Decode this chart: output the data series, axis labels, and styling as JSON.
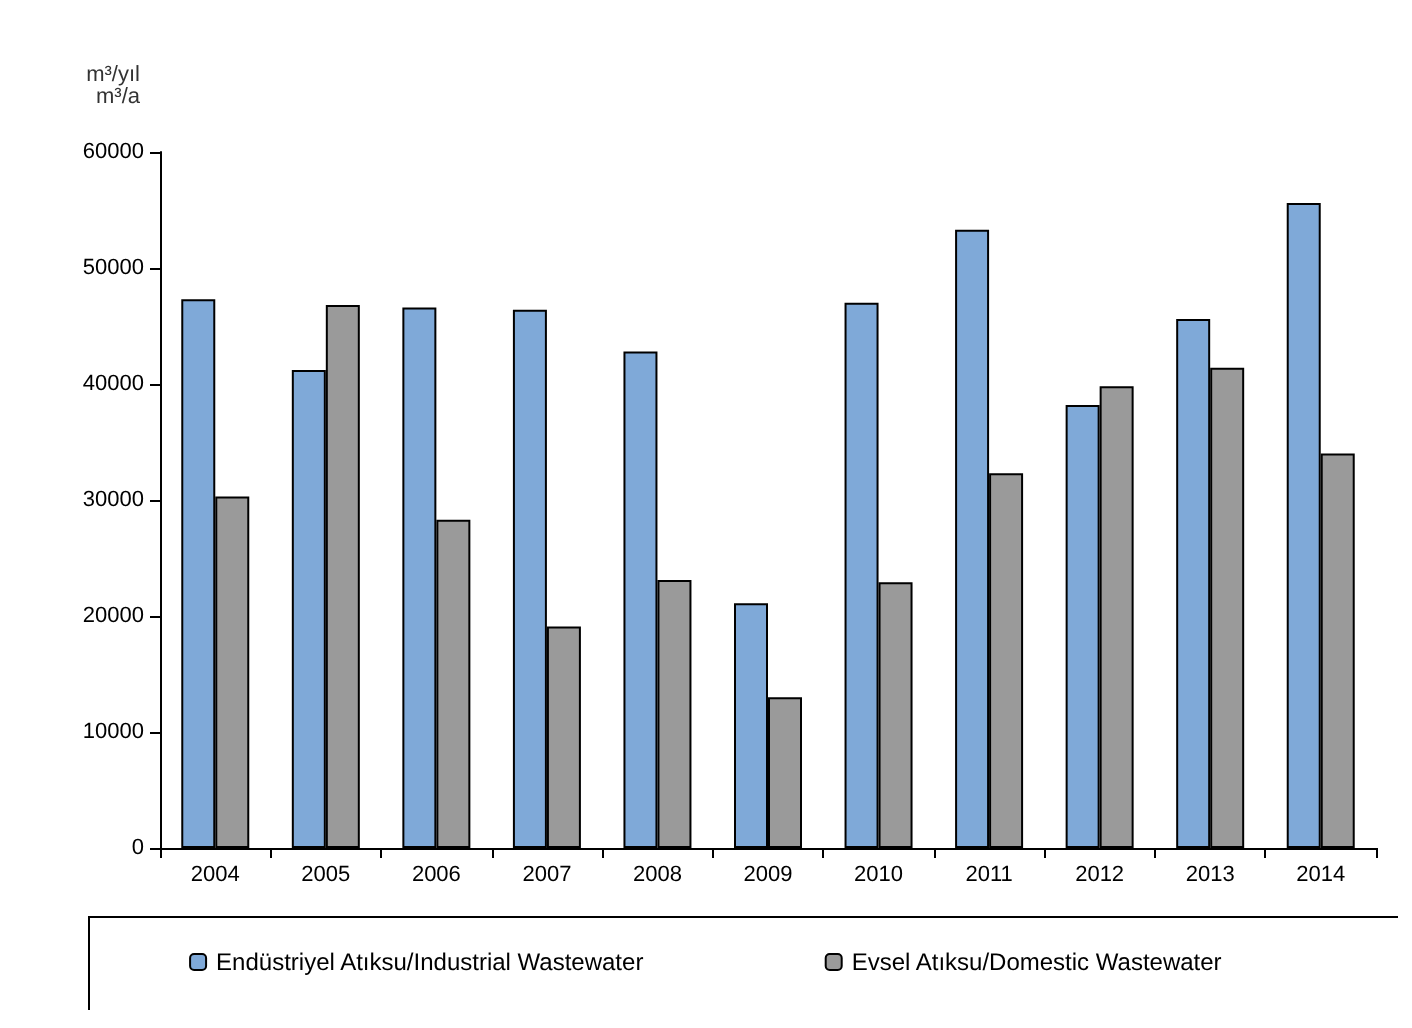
{
  "chart_data": {
    "type": "bar",
    "ylabel": "m³/yıl\nm³/a",
    "categories": [
      "2004",
      "2005",
      "2006",
      "2007",
      "2008",
      "2009",
      "2010",
      "2011",
      "2012",
      "2013",
      "2014"
    ],
    "series": [
      {
        "name": "Endüstriyel Atıksu/Industrial Wastewater",
        "color": "#7fa9d8",
        "values": [
          47300,
          41200,
          46600,
          46400,
          42800,
          21100,
          47000,
          53300,
          38200,
          45600,
          55600
        ]
      },
      {
        "name": "Evsel Atıksu/Domestic Wastewater",
        "color": "#9a9a9a",
        "values": [
          30300,
          46800,
          28300,
          19100,
          23100,
          13000,
          22900,
          32300,
          39800,
          41400,
          34000
        ]
      }
    ],
    "ylim": [
      0,
      60000
    ],
    "yticks": [
      0,
      10000,
      20000,
      30000,
      40000,
      50000,
      60000
    ],
    "grid": false,
    "legend": "bottom"
  }
}
